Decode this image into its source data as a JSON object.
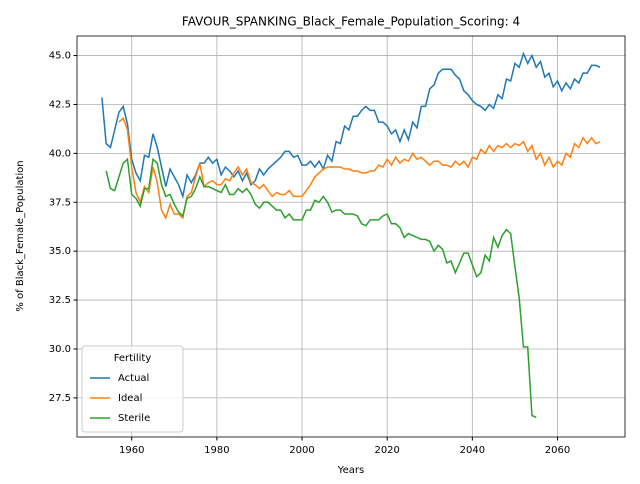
{
  "chart_data": {
    "type": "line",
    "title": "FAVOUR_SPANKING_Black_Female_Population_Scoring: 4",
    "xlabel": "Years",
    "ylabel": "% of Black_Female_Population",
    "x": [
      1953,
      1954,
      1955,
      1956,
      1957,
      1958,
      1959,
      1960,
      1961,
      1962,
      1963,
      1964,
      1965,
      1966,
      1967,
      1968,
      1969,
      1970,
      1971,
      1972,
      1973,
      1974,
      1975,
      1976,
      1977,
      1978,
      1979,
      1980,
      1981,
      1982,
      1983,
      1984,
      1985,
      1986,
      1987,
      1988,
      1989,
      1990,
      1991,
      1992,
      1993,
      1994,
      1995,
      1996,
      1997,
      1998,
      1999,
      2000,
      2001,
      2002,
      2003,
      2004,
      2005,
      2006,
      2007,
      2008,
      2009,
      2010,
      2011,
      2012,
      2013,
      2014,
      2015,
      2016,
      2017,
      2018,
      2019,
      2020,
      2021,
      2022,
      2023,
      2024,
      2025,
      2026,
      2027,
      2028,
      2029,
      2030,
      2031,
      2032,
      2033,
      2034,
      2035,
      2036,
      2037,
      2038,
      2039,
      2040,
      2041,
      2042,
      2043,
      2044,
      2045,
      2046,
      2047,
      2048,
      2049,
      2050,
      2051,
      2052,
      2053,
      2054,
      2055,
      2056,
      2057,
      2058,
      2059,
      2060,
      2061,
      2062,
      2063,
      2064,
      2065,
      2066,
      2067,
      2068,
      2069,
      2070
    ],
    "series": [
      {
        "name": "Actual",
        "color": "#1f77b4",
        "values": [
          42.85,
          40.5,
          40.3,
          41.2,
          42.1,
          42.4,
          41.5,
          39.7,
          39.0,
          38.6,
          39.9,
          39.8,
          41.0,
          40.3,
          39.3,
          38.3,
          39.2,
          38.8,
          38.4,
          37.8,
          38.9,
          38.5,
          38.9,
          39.5,
          39.5,
          39.8,
          39.5,
          39.7,
          38.9,
          39.3,
          39.1,
          38.8,
          39.1,
          38.6,
          39.0,
          38.4,
          38.6,
          39.2,
          38.9,
          39.2,
          39.4,
          39.6,
          39.8,
          40.1,
          40.1,
          39.8,
          39.9,
          39.4,
          39.4,
          39.6,
          39.3,
          39.6,
          39.2,
          39.9,
          39.6,
          40.6,
          40.5,
          41.4,
          41.2,
          41.9,
          41.9,
          42.2,
          42.4,
          42.2,
          42.2,
          41.6,
          41.6,
          41.4,
          41.0,
          41.2,
          40.6,
          41.2,
          40.7,
          41.6,
          41.3,
          42.4,
          42.4,
          43.3,
          43.5,
          44.1,
          44.3,
          44.3,
          44.3,
          44.0,
          43.8,
          43.2,
          43.0,
          42.7,
          42.5,
          42.4,
          42.2,
          42.5,
          42.3,
          43.0,
          42.8,
          43.8,
          43.7,
          44.6,
          44.4,
          45.1,
          44.6,
          45.0,
          44.4,
          44.7,
          43.9,
          44.1,
          43.4,
          43.7,
          43.2,
          43.6,
          43.3,
          43.8,
          43.6,
          44.1,
          44.1,
          44.5,
          44.5,
          44.4
        ]
      },
      {
        "name": "Ideal",
        "color": "#ff7f0e",
        "values": [
          null,
          null,
          null,
          null,
          41.6,
          41.8,
          41.2,
          39.3,
          38.0,
          37.5,
          38.3,
          38.0,
          39.3,
          38.5,
          37.1,
          36.7,
          37.4,
          36.9,
          36.9,
          36.7,
          37.8,
          38.0,
          38.8,
          39.5,
          38.3,
          38.5,
          38.6,
          38.4,
          38.4,
          38.7,
          38.6,
          39.0,
          39.3,
          38.9,
          39.2,
          38.5,
          38.4,
          38.2,
          38.4,
          38.1,
          37.8,
          38.0,
          37.9,
          37.9,
          38.1,
          37.8,
          37.8,
          37.8,
          38.1,
          38.4,
          38.8,
          39.0,
          39.2,
          39.3,
          39.3,
          39.3,
          39.3,
          39.2,
          39.2,
          39.1,
          39.1,
          39.0,
          39.0,
          39.1,
          39.1,
          39.4,
          39.3,
          39.7,
          39.4,
          39.8,
          39.5,
          39.7,
          39.6,
          40.0,
          39.7,
          39.8,
          39.6,
          39.4,
          39.6,
          39.6,
          39.4,
          39.4,
          39.3,
          39.6,
          39.4,
          39.6,
          39.3,
          39.8,
          39.7,
          40.2,
          40.0,
          40.4,
          40.1,
          40.4,
          40.3,
          40.5,
          40.3,
          40.5,
          40.4,
          40.6,
          40.1,
          40.4,
          39.7,
          40.0,
          39.4,
          39.8,
          39.3,
          39.6,
          39.4,
          40.0,
          39.8,
          40.5,
          40.3,
          40.8,
          40.5,
          40.8,
          40.5,
          40.6
        ]
      },
      {
        "name": "Sterile",
        "color": "#2ca02c",
        "values": [
          null,
          39.1,
          38.2,
          38.1,
          38.8,
          39.5,
          39.7,
          37.9,
          37.7,
          37.3,
          38.2,
          38.2,
          39.7,
          39.5,
          38.4,
          37.8,
          37.9,
          37.4,
          37.0,
          36.8,
          37.7,
          37.8,
          38.2,
          38.8,
          38.3,
          38.3,
          38.2,
          38.1,
          38.0,
          38.4,
          37.9,
          37.9,
          38.2,
          38.0,
          38.2,
          37.9,
          37.4,
          37.2,
          37.5,
          37.5,
          37.3,
          37.1,
          37.1,
          36.7,
          36.9,
          36.6,
          36.6,
          36.6,
          37.1,
          37.1,
          37.6,
          37.5,
          37.8,
          37.5,
          37.0,
          37.1,
          37.1,
          36.9,
          36.9,
          36.9,
          36.8,
          36.4,
          36.3,
          36.6,
          36.6,
          36.6,
          36.8,
          36.9,
          36.4,
          36.4,
          36.2,
          35.7,
          35.9,
          35.8,
          35.7,
          35.6,
          35.6,
          35.5,
          35.0,
          35.3,
          35.1,
          34.4,
          34.5,
          33.9,
          34.4,
          34.9,
          34.9,
          34.3,
          33.7,
          33.9,
          34.8,
          34.5,
          35.7,
          35.2,
          35.8,
          36.1,
          35.9,
          34.2,
          32.6,
          30.1,
          30.1,
          26.6,
          26.5,
          null,
          null,
          null,
          null,
          null,
          null,
          null,
          null,
          null,
          null,
          null,
          null,
          null,
          null,
          null
        ]
      }
    ],
    "xlim": [
      1947.15,
      2075.85
    ],
    "xticks": [
      1960,
      1980,
      2000,
      2020,
      2040,
      2060
    ],
    "ylim": [
      25.5,
      46.0
    ],
    "yticks": [
      27.5,
      {
        "value": 30,
        "label": "30.0"
      },
      32.5,
      {
        "value": 35,
        "label": "35.0"
      },
      37.5,
      {
        "value": 40,
        "label": "40.0"
      },
      42.5,
      {
        "value": 45,
        "label": "45.0"
      }
    ],
    "grid": true,
    "legend_title": "Fertility",
    "legend_loc": "lower left"
  }
}
